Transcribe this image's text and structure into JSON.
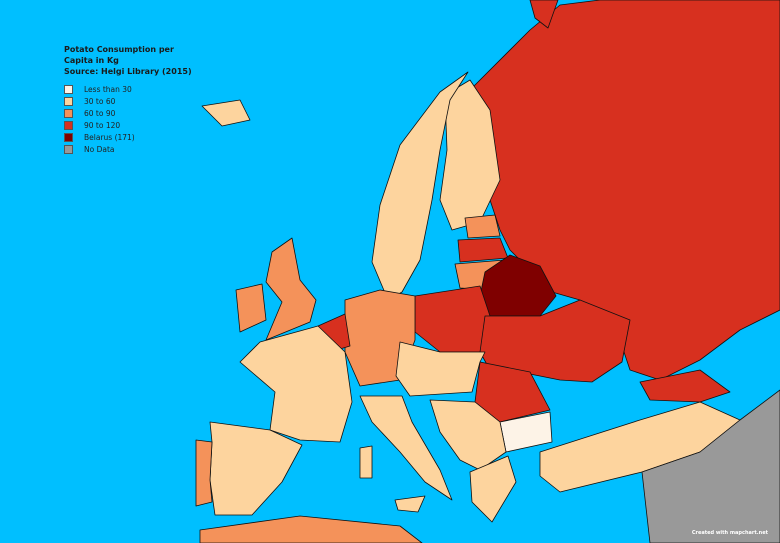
{
  "map": {
    "title_lines": [
      "Potato Consumption per",
      "Capita in Kg",
      "Source: Helgi Library (2015)"
    ],
    "background_color": "#00bfff",
    "legend": [
      {
        "label": "Less than 30",
        "color": "#fdf3e7"
      },
      {
        "label": "30 to 60",
        "color": "#fdd49e"
      },
      {
        "label": "60 to 90",
        "color": "#f4925a"
      },
      {
        "label": "90 to 120",
        "color": "#d7301f"
      },
      {
        "label": "Belarus (171)",
        "color": "#7f0000"
      },
      {
        "label": "No Data",
        "color": "#999999"
      }
    ],
    "credit": "Created with mapchart.net"
  }
}
